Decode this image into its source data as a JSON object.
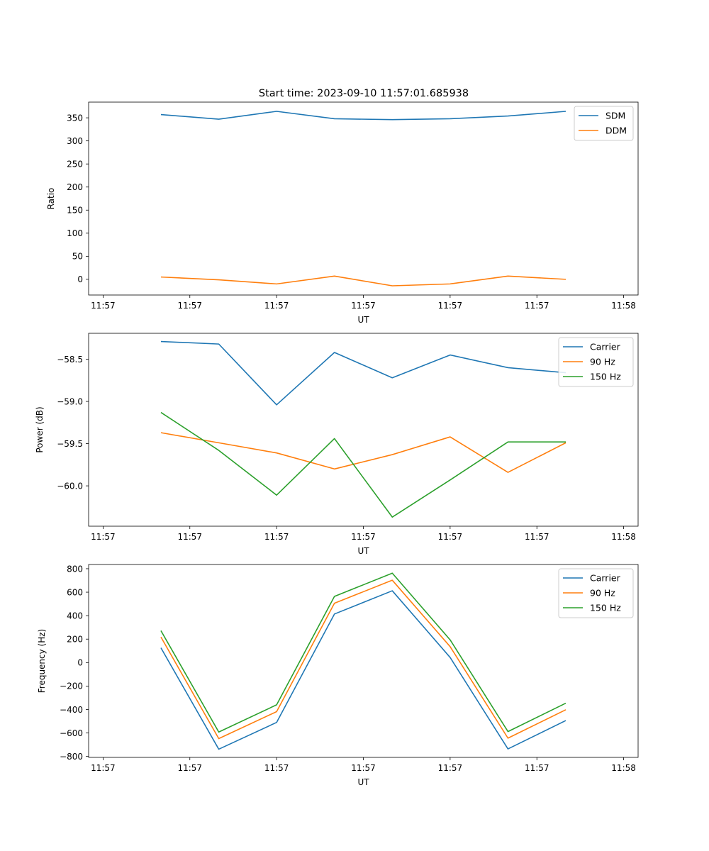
{
  "figure": {
    "title": "Start time: 2023-09-10 11:57:01.685938"
  },
  "chart_data": [
    {
      "type": "line",
      "title": "Start time: 2023-09-10 11:57:01.685938",
      "xlabel": "UT",
      "ylabel": "Ratio",
      "x_seconds": [
        0.8,
        1.0,
        1.2,
        1.4,
        1.6,
        1.8,
        2.0,
        2.2
      ],
      "xlim": [
        0.55,
        2.45
      ],
      "x_ticks": [
        0.6,
        0.9,
        1.2,
        1.5,
        1.8,
        2.1,
        2.4
      ],
      "x_tick_labels": [
        "11:57",
        "11:57",
        "11:57",
        "11:57",
        "11:57",
        "11:57",
        "11:58"
      ],
      "ylim": [
        -34,
        384
      ],
      "y_ticks": [
        0,
        50,
        100,
        150,
        200,
        250,
        300,
        350
      ],
      "y_tick_labels": [
        "0",
        "50",
        "100",
        "150",
        "200",
        "250",
        "300",
        "350"
      ],
      "legend_position": "top-right",
      "series": [
        {
          "name": "SDM",
          "color": "#1f77b4",
          "values": [
            357,
            347,
            364,
            348,
            346,
            348,
            354,
            364
          ]
        },
        {
          "name": "DDM",
          "color": "#ff7f0e",
          "values": [
            5,
            -1,
            -10,
            7,
            -14,
            -10,
            7,
            0
          ]
        }
      ]
    },
    {
      "type": "line",
      "title": "",
      "xlabel": "UT",
      "ylabel": "Power (dB)",
      "x_seconds": [
        0.8,
        1.0,
        1.2,
        1.4,
        1.6,
        1.8,
        2.0,
        2.2
      ],
      "xlim": [
        0.55,
        2.45
      ],
      "x_ticks": [
        0.6,
        0.9,
        1.2,
        1.5,
        1.8,
        2.1,
        2.4
      ],
      "x_tick_labels": [
        "11:57",
        "11:57",
        "11:57",
        "11:57",
        "11:57",
        "11:57",
        "11:58"
      ],
      "ylim": [
        -60.478,
        -58.193
      ],
      "y_ticks": [
        -60.0,
        -59.5,
        -59.0,
        -58.5
      ],
      "y_tick_labels": [
        "−60.0",
        "−59.5",
        "−59.0",
        "−58.5"
      ],
      "legend_position": "top-right",
      "series": [
        {
          "name": "Carrier",
          "color": "#1f77b4",
          "values": [
            -58.29,
            -58.32,
            -59.04,
            -58.42,
            -58.72,
            -58.45,
            -58.6,
            -58.66
          ]
        },
        {
          "name": "90 Hz",
          "color": "#ff7f0e",
          "values": [
            -59.37,
            -59.49,
            -59.61,
            -59.8,
            -59.63,
            -59.42,
            -59.84,
            -59.49
          ]
        },
        {
          "name": "150 Hz",
          "color": "#2ca02c",
          "values": [
            -59.13,
            -59.58,
            -60.11,
            -59.44,
            -60.37,
            -59.93,
            -59.48,
            -59.48
          ]
        }
      ]
    },
    {
      "type": "line",
      "title": "",
      "xlabel": "UT",
      "ylabel": "Frequency (Hz)",
      "x_seconds": [
        0.8,
        1.0,
        1.2,
        1.4,
        1.6,
        1.8,
        2.0,
        2.2
      ],
      "xlim": [
        0.55,
        2.45
      ],
      "x_ticks": [
        0.6,
        0.9,
        1.2,
        1.5,
        1.8,
        2.1,
        2.4
      ],
      "x_tick_labels": [
        "11:57",
        "11:57",
        "11:57",
        "11:57",
        "11:57",
        "11:57",
        "11:58"
      ],
      "ylim": [
        -808,
        836
      ],
      "y_ticks": [
        -800,
        -600,
        -400,
        -200,
        0,
        200,
        400,
        600,
        800
      ],
      "y_tick_labels": [
        "−800",
        "−600",
        "−400",
        "−200",
        "0",
        "200",
        "400",
        "600",
        "800"
      ],
      "legend_position": "top-right",
      "series": [
        {
          "name": "Carrier",
          "color": "#1f77b4",
          "values": [
            126,
            -738,
            -510,
            414,
            612,
            44,
            -736,
            -494
          ]
        },
        {
          "name": "90 Hz",
          "color": "#ff7f0e",
          "values": [
            218,
            -648,
            -418,
            506,
            702,
            136,
            -644,
            -402
          ]
        },
        {
          "name": "150 Hz",
          "color": "#2ca02c",
          "values": [
            272,
            -592,
            -360,
            564,
            762,
            194,
            -588,
            -346
          ]
        }
      ]
    }
  ]
}
